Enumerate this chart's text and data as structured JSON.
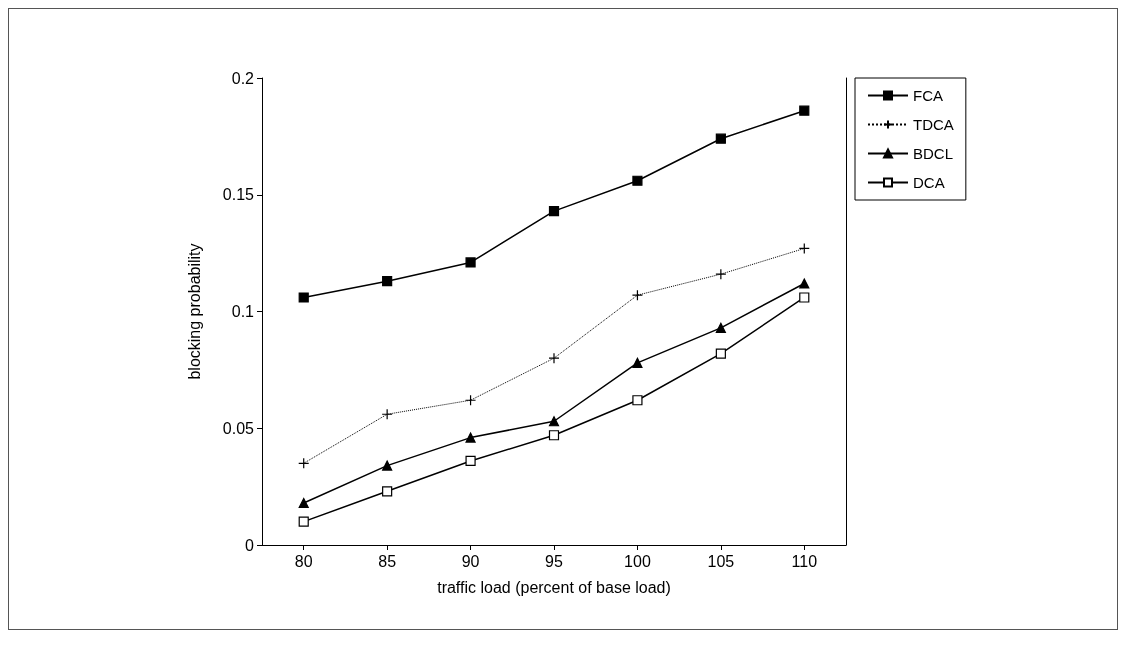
{
  "chart_data": {
    "type": "line",
    "xlabel": "traffic load (percent of base load)",
    "ylabel": "blocking probability",
    "x": [
      80,
      85,
      90,
      95,
      100,
      105,
      110
    ],
    "xlim": [
      77.5,
      112.5
    ],
    "xticks": [
      80,
      85,
      90,
      95,
      100,
      105,
      110
    ],
    "ylim": [
      0,
      0.2
    ],
    "yticks": [
      0,
      0.05,
      0.1,
      0.15,
      0.2
    ],
    "grid": false,
    "legend": "top right",
    "series": [
      {
        "name": "FCA",
        "color": "#000000",
        "marker": "square",
        "line_style": "solid",
        "values": [
          0.106,
          0.113,
          0.121,
          0.143,
          0.156,
          0.174,
          0.186
        ]
      },
      {
        "name": "TDCA",
        "color": "#000000",
        "marker": "cross",
        "line_style": "dotted",
        "values": [
          0.035,
          0.056,
          0.062,
          0.08,
          0.107,
          0.116,
          0.127
        ]
      },
      {
        "name": "BDCL",
        "color": "#000000",
        "marker": "triangle",
        "line_style": "solid",
        "values": [
          0.018,
          0.034,
          0.046,
          0.053,
          0.078,
          0.093,
          0.112
        ]
      },
      {
        "name": "DCA",
        "color": "#000000",
        "marker": "square",
        "colors": [
          "#ffffff",
          "#ffffff",
          "#ffffff",
          "#ffffff",
          "#ffffff",
          "#ffffff",
          "#ffffff"
        ],
        "line_style": "solid",
        "values": [
          0.01,
          0.023,
          0.036,
          0.047,
          0.062,
          0.082,
          0.106
        ]
      }
    ]
  }
}
